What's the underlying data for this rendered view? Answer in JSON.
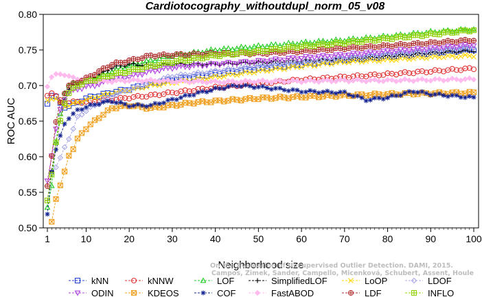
{
  "chart_data": {
    "type": "line",
    "title": "Cardiotocography_withoutdupl_norm_05_v08",
    "xlabel": "Neighborhood size",
    "ylabel": "ROC AUC",
    "xlim": [
      1,
      100
    ],
    "ylim": [
      0.5,
      0.8
    ],
    "x_ticks": [
      1,
      10,
      20,
      30,
      40,
      50,
      60,
      70,
      80,
      90,
      100
    ],
    "y_ticks": [
      "0.50",
      "0.55",
      "0.60",
      "0.65",
      "0.70",
      "0.75",
      "0.80"
    ],
    "grid": false,
    "legend_position": "bottom",
    "watermark": [
      "Campos, Zimek, Sander, Campello, Micenková, Schubert, Assent, Houle",
      "On the Evaluation of Unsupervised Outlier Detection. DAMI, 2015."
    ],
    "series": [
      {
        "name": "kNN",
        "color": "#1f3fd6",
        "marker": "square",
        "points": [
          [
            1,
            0.675
          ],
          [
            2,
            0.687
          ],
          [
            3,
            0.683
          ],
          [
            4,
            0.675
          ],
          [
            5,
            0.67
          ],
          [
            6,
            0.672
          ],
          [
            8,
            0.676
          ],
          [
            10,
            0.682
          ],
          [
            13,
            0.686
          ],
          [
            16,
            0.69
          ],
          [
            20,
            0.695
          ],
          [
            25,
            0.703
          ],
          [
            30,
            0.708
          ],
          [
            40,
            0.717
          ],
          [
            50,
            0.724
          ],
          [
            60,
            0.73
          ],
          [
            70,
            0.736
          ],
          [
            80,
            0.741
          ],
          [
            90,
            0.746
          ],
          [
            100,
            0.751
          ]
        ]
      },
      {
        "name": "kNNW",
        "color": "#e03030",
        "marker": "circle",
        "points": [
          [
            1,
            0.687
          ],
          [
            2,
            0.69
          ],
          [
            3,
            0.684
          ],
          [
            4,
            0.679
          ],
          [
            5,
            0.676
          ],
          [
            6,
            0.676
          ],
          [
            8,
            0.677
          ],
          [
            10,
            0.677
          ],
          [
            13,
            0.678
          ],
          [
            16,
            0.68
          ],
          [
            20,
            0.683
          ],
          [
            25,
            0.686
          ],
          [
            30,
            0.69
          ],
          [
            40,
            0.697
          ],
          [
            50,
            0.703
          ],
          [
            60,
            0.708
          ],
          [
            70,
            0.712
          ],
          [
            80,
            0.716
          ],
          [
            90,
            0.72
          ],
          [
            100,
            0.724
          ]
        ]
      },
      {
        "name": "LOF",
        "color": "#22cc22",
        "marker": "triangle",
        "points": [
          [
            1,
            0.53
          ],
          [
            2,
            0.56
          ],
          [
            3,
            0.62
          ],
          [
            4,
            0.66
          ],
          [
            5,
            0.69
          ],
          [
            6,
            0.7
          ],
          [
            7,
            0.703
          ],
          [
            8,
            0.706
          ],
          [
            10,
            0.708
          ],
          [
            13,
            0.712
          ],
          [
            16,
            0.72
          ],
          [
            20,
            0.728
          ],
          [
            25,
            0.735
          ],
          [
            30,
            0.742
          ],
          [
            40,
            0.75
          ],
          [
            50,
            0.755
          ],
          [
            60,
            0.76
          ],
          [
            70,
            0.764
          ],
          [
            80,
            0.769
          ],
          [
            90,
            0.775
          ],
          [
            100,
            0.779
          ]
        ]
      },
      {
        "name": "SimplifiedLOF",
        "color": "#000000",
        "marker": "plus",
        "points": [
          [
            1,
            0.54
          ],
          [
            2,
            0.58
          ],
          [
            3,
            0.62
          ],
          [
            4,
            0.65
          ],
          [
            5,
            0.68
          ],
          [
            6,
            0.695
          ],
          [
            7,
            0.7
          ],
          [
            8,
            0.703
          ],
          [
            10,
            0.708
          ],
          [
            13,
            0.715
          ],
          [
            16,
            0.725
          ],
          [
            20,
            0.73
          ],
          [
            25,
            0.728
          ],
          [
            30,
            0.73
          ],
          [
            40,
            0.73
          ],
          [
            50,
            0.732
          ],
          [
            60,
            0.735
          ],
          [
            70,
            0.737
          ],
          [
            80,
            0.741
          ],
          [
            90,
            0.746
          ],
          [
            100,
            0.749
          ]
        ]
      },
      {
        "name": "LoOP",
        "color": "#ffd400",
        "marker": "x",
        "points": [
          [
            1,
            0.68
          ],
          [
            2,
            0.682
          ],
          [
            3,
            0.68
          ],
          [
            4,
            0.676
          ],
          [
            5,
            0.672
          ],
          [
            6,
            0.672
          ],
          [
            8,
            0.676
          ],
          [
            10,
            0.68
          ],
          [
            13,
            0.685
          ],
          [
            16,
            0.689
          ],
          [
            20,
            0.694
          ],
          [
            25,
            0.7
          ],
          [
            30,
            0.704
          ],
          [
            40,
            0.712
          ],
          [
            50,
            0.72
          ],
          [
            60,
            0.727
          ],
          [
            70,
            0.733
          ],
          [
            80,
            0.736
          ],
          [
            90,
            0.74
          ],
          [
            100,
            0.742
          ]
        ]
      },
      {
        "name": "LDOF",
        "color": "#a8a8e8",
        "marker": "diamond",
        "points": [
          [
            2,
            0.575
          ],
          [
            3,
            0.585
          ],
          [
            4,
            0.6
          ],
          [
            5,
            0.612
          ],
          [
            6,
            0.625
          ],
          [
            7,
            0.64
          ],
          [
            8,
            0.655
          ],
          [
            10,
            0.665
          ],
          [
            13,
            0.675
          ],
          [
            16,
            0.685
          ],
          [
            20,
            0.695
          ],
          [
            25,
            0.705
          ],
          [
            30,
            0.713
          ],
          [
            40,
            0.72
          ],
          [
            50,
            0.728
          ],
          [
            60,
            0.734
          ],
          [
            70,
            0.739
          ],
          [
            80,
            0.744
          ],
          [
            90,
            0.749
          ],
          [
            100,
            0.754
          ]
        ]
      },
      {
        "name": "ODIN",
        "color": "#b040e0",
        "marker": "triangle-down",
        "points": [
          [
            1,
            0.567
          ],
          [
            2,
            0.6
          ],
          [
            3,
            0.64
          ],
          [
            4,
            0.665
          ],
          [
            5,
            0.68
          ],
          [
            6,
            0.69
          ],
          [
            8,
            0.695
          ],
          [
            10,
            0.698
          ],
          [
            13,
            0.702
          ],
          [
            16,
            0.708
          ],
          [
            20,
            0.712
          ],
          [
            25,
            0.72
          ],
          [
            30,
            0.725
          ],
          [
            40,
            0.73
          ],
          [
            50,
            0.734
          ],
          [
            60,
            0.739
          ],
          [
            70,
            0.743
          ],
          [
            80,
            0.748
          ],
          [
            90,
            0.752
          ],
          [
            100,
            0.757
          ]
        ]
      },
      {
        "name": "KDEOS",
        "color": "#f0a020",
        "marker": "square-x",
        "points": [
          [
            2,
            0.51
          ],
          [
            3,
            0.54
          ],
          [
            4,
            0.56
          ],
          [
            5,
            0.58
          ],
          [
            6,
            0.6
          ],
          [
            7,
            0.612
          ],
          [
            8,
            0.625
          ],
          [
            10,
            0.64
          ],
          [
            13,
            0.655
          ],
          [
            16,
            0.668
          ],
          [
            20,
            0.672
          ],
          [
            25,
            0.668
          ],
          [
            30,
            0.672
          ],
          [
            35,
            0.676
          ],
          [
            40,
            0.678
          ],
          [
            50,
            0.682
          ],
          [
            60,
            0.684
          ],
          [
            70,
            0.686
          ],
          [
            80,
            0.688
          ],
          [
            90,
            0.689
          ],
          [
            100,
            0.69
          ]
        ]
      },
      {
        "name": "COF",
        "color": "#102090",
        "marker": "asterisk",
        "points": [
          [
            1,
            0.52
          ],
          [
            2,
            0.58
          ],
          [
            3,
            0.61
          ],
          [
            4,
            0.63
          ],
          [
            5,
            0.645
          ],
          [
            6,
            0.655
          ],
          [
            7,
            0.66
          ],
          [
            8,
            0.665
          ],
          [
            10,
            0.67
          ],
          [
            13,
            0.675
          ],
          [
            16,
            0.678
          ],
          [
            20,
            0.672
          ],
          [
            25,
            0.672
          ],
          [
            30,
            0.68
          ],
          [
            35,
            0.688
          ],
          [
            40,
            0.695
          ],
          [
            45,
            0.7
          ],
          [
            50,
            0.698
          ],
          [
            55,
            0.695
          ],
          [
            60,
            0.692
          ],
          [
            70,
            0.69
          ],
          [
            75,
            0.68
          ],
          [
            80,
            0.683
          ],
          [
            86,
            0.692
          ],
          [
            90,
            0.688
          ],
          [
            100,
            0.683
          ]
        ]
      },
      {
        "name": "FastABOD",
        "color": "#ffbbee",
        "marker": "diamond-filled",
        "points": [
          [
            1,
            0.7
          ],
          [
            2,
            0.712
          ],
          [
            3,
            0.715
          ],
          [
            4,
            0.717
          ],
          [
            5,
            0.715
          ],
          [
            6,
            0.712
          ],
          [
            8,
            0.71
          ],
          [
            10,
            0.708
          ],
          [
            13,
            0.706
          ],
          [
            16,
            0.706
          ],
          [
            20,
            0.707
          ],
          [
            25,
            0.707
          ],
          [
            30,
            0.706
          ],
          [
            40,
            0.705
          ],
          [
            50,
            0.706
          ],
          [
            60,
            0.706
          ],
          [
            70,
            0.707
          ],
          [
            80,
            0.707
          ],
          [
            90,
            0.708
          ],
          [
            100,
            0.709
          ]
        ]
      },
      {
        "name": "LDF",
        "color": "#b03030",
        "marker": "circle-plus",
        "points": [
          [
            1,
            0.56
          ],
          [
            2,
            0.6
          ],
          [
            3,
            0.65
          ],
          [
            4,
            0.675
          ],
          [
            5,
            0.69
          ],
          [
            6,
            0.7
          ],
          [
            8,
            0.705
          ],
          [
            10,
            0.71
          ],
          [
            13,
            0.72
          ],
          [
            16,
            0.73
          ],
          [
            20,
            0.735
          ],
          [
            25,
            0.742
          ],
          [
            30,
            0.743
          ],
          [
            40,
            0.745
          ],
          [
            50,
            0.745
          ],
          [
            60,
            0.748
          ],
          [
            70,
            0.752
          ],
          [
            80,
            0.756
          ],
          [
            90,
            0.76
          ],
          [
            100,
            0.764
          ]
        ]
      },
      {
        "name": "INFLO",
        "color": "#90d000",
        "marker": "square-cross",
        "points": [
          [
            1,
            0.54
          ],
          [
            2,
            0.575
          ],
          [
            3,
            0.62
          ],
          [
            4,
            0.65
          ],
          [
            5,
            0.675
          ],
          [
            6,
            0.69
          ],
          [
            8,
            0.7
          ],
          [
            10,
            0.705
          ],
          [
            13,
            0.71
          ],
          [
            16,
            0.715
          ],
          [
            20,
            0.72
          ],
          [
            25,
            0.727
          ],
          [
            30,
            0.733
          ],
          [
            40,
            0.742
          ],
          [
            50,
            0.748
          ],
          [
            60,
            0.755
          ],
          [
            70,
            0.76
          ],
          [
            80,
            0.766
          ],
          [
            90,
            0.772
          ],
          [
            100,
            0.778
          ]
        ]
      }
    ]
  }
}
